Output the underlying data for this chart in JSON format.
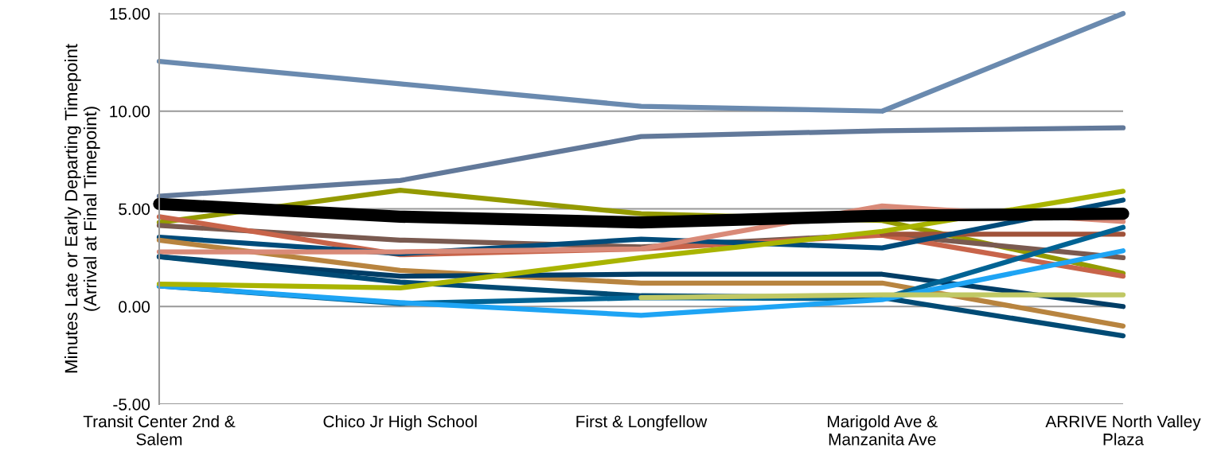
{
  "chart_data": {
    "type": "line",
    "ylabel": "Minutes Late or Early Departing Timepoint\n(Arrival at Final Timepoint)",
    "categories": [
      "Transit Center 2nd & Salem",
      "Chico Jr High School",
      "First & Longfellow",
      "Marigold Ave & Manzanita Ave",
      "ARRIVE North Valley Plaza"
    ],
    "ylim": [
      -5,
      15
    ],
    "yticks": [
      {
        "value": -5,
        "label": "-5.00"
      },
      {
        "value": 0,
        "label": "0.00"
      },
      {
        "value": 5,
        "label": "5.00"
      },
      {
        "value": 10,
        "label": "10.00"
      },
      {
        "value": 15,
        "label": "15.00"
      }
    ],
    "grid": "y",
    "legend": false,
    "marker": "none",
    "line_style": "solid",
    "series": [
      {
        "color": "#6a8aaf",
        "values": [
          12.55,
          11.4,
          10.25,
          10.0,
          15.0
        ]
      },
      {
        "color": "#62799a",
        "values": [
          5.65,
          6.45,
          8.7,
          9.0,
          9.15
        ]
      },
      {
        "color": "#949a00",
        "values": [
          4.3,
          5.95,
          4.75,
          4.4,
          1.7
        ]
      },
      {
        "color": "#7a5a50",
        "values": [
          4.15,
          3.4,
          3.05,
          3.7,
          2.5
        ]
      },
      {
        "color": "#c8644a",
        "values": [
          4.6,
          2.65,
          2.95,
          3.65,
          1.55
        ]
      },
      {
        "color": "#a0523a",
        "values": [
          null,
          null,
          null,
          3.7,
          3.7
        ]
      },
      {
        "color": "#004b7a",
        "values": [
          3.55,
          2.7,
          3.45,
          3.0,
          5.45
        ]
      },
      {
        "color": "#b8843f",
        "values": [
          3.4,
          1.85,
          1.2,
          1.2,
          -1.0
        ]
      },
      {
        "color": "#d98a78",
        "values": [
          2.8,
          2.8,
          2.95,
          5.15,
          4.35
        ]
      },
      {
        "color": "#003d66",
        "values": [
          2.55,
          1.55,
          1.65,
          1.65,
          0.0
        ]
      },
      {
        "color": "#004a74",
        "values": [
          2.55,
          1.25,
          0.55,
          0.45,
          -1.5
        ]
      },
      {
        "color": "#006394",
        "values": [
          1.05,
          0.15,
          0.45,
          0.4,
          4.05
        ]
      },
      {
        "color": "#1ea4f4",
        "values": [
          1.05,
          0.2,
          -0.45,
          0.35,
          2.85
        ]
      },
      {
        "color": "#a9b400",
        "values": [
          1.15,
          0.95,
          2.5,
          3.85,
          5.9
        ]
      },
      {
        "color": "#c0c864",
        "values": [
          null,
          null,
          0.45,
          0.6,
          0.6
        ]
      },
      {
        "color": "#000000",
        "values": [
          5.25,
          4.6,
          4.3,
          4.65,
          4.75
        ]
      }
    ]
  }
}
